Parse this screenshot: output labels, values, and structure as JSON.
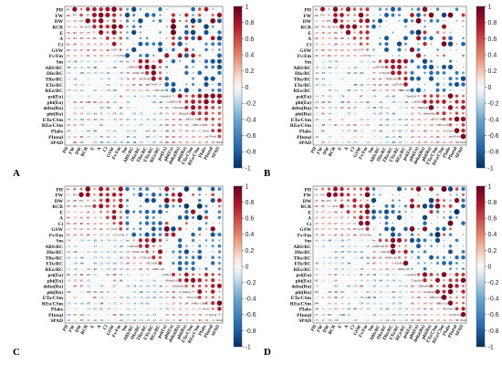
{
  "figure": {
    "panel_letters": [
      "A",
      "B",
      "C",
      "D"
    ]
  },
  "chart_data": [
    {
      "type": "heatmap",
      "panel": "A",
      "variables": [
        "PH",
        "FW",
        "DW",
        "RCR",
        "E",
        "A",
        "Ci",
        "GSW",
        "Fv/Fm",
        "Sm",
        "ABS/RC",
        "DIo/RC",
        "TRo/RC",
        "ETo/RC",
        "REo/RC",
        "psi(Eo)",
        "phi(Eo)",
        "delta(Ro)",
        "phi(Ro)",
        "ETo/CSm",
        "REo/CSm",
        "PIabs",
        "PItotal",
        "SPAD"
      ],
      "colorbar_ticks": [
        1,
        0.8,
        0.6,
        0.4,
        0.2,
        0,
        -0.2,
        -0.4,
        -0.6,
        -0.8,
        -1
      ],
      "colorbar_range": [
        -1,
        1
      ],
      "upper": "circles",
      "lower": "numbers"
    },
    {
      "type": "heatmap",
      "panel": "B",
      "variables": [
        "PH",
        "FW",
        "DW",
        "RCR",
        "E",
        "A",
        "Ci",
        "GSW",
        "Fv/Fm",
        "Sm",
        "ABS/RC",
        "DIo/RC",
        "TRo/RC",
        "ETo/RC",
        "REo/RC",
        "psi(Eo)",
        "phi(Eo)",
        "delta(Ro)",
        "phi(Ro)",
        "ETo/CSm",
        "REo/CSm",
        "PIabs",
        "PItotal",
        "SPAD"
      ],
      "colorbar_ticks": [
        1,
        0.8,
        0.6,
        0.4,
        0.2,
        0,
        -0.2,
        -0.4,
        -0.6,
        -0.8,
        -1
      ],
      "colorbar_range": [
        -1,
        1
      ],
      "upper": "circles",
      "lower": "numbers"
    },
    {
      "type": "heatmap",
      "panel": "C",
      "variables": [
        "PH",
        "FW",
        "DW",
        "RCR",
        "E",
        "A",
        "Ci",
        "GSW",
        "Fv/Fm",
        "Sm",
        "ABS/RC",
        "DIo/RC",
        "TRo/RC",
        "ETo/RC",
        "REo/RC",
        "psi(Eo)",
        "phi(Eo)",
        "delta(Ro)",
        "phi(Ro)",
        "ETo/CSm",
        "REo/CSm",
        "PIabs",
        "PItotal",
        "SPAD"
      ],
      "colorbar_ticks": [
        1,
        0.8,
        0.6,
        0.4,
        0.2,
        0,
        -0.2,
        -0.4,
        -0.6,
        -0.8,
        -1
      ],
      "colorbar_range": [
        -1,
        1
      ],
      "upper": "circles",
      "lower": "numbers"
    },
    {
      "type": "heatmap",
      "panel": "D",
      "variables": [
        "PH",
        "FW",
        "DW",
        "RCR",
        "E",
        "A",
        "Ci",
        "GSW",
        "Fv/Fm",
        "Sm",
        "ABS/RC",
        "DIo/RC",
        "TRo/RC",
        "ETo/RC",
        "REo/RC",
        "psi(Eo)",
        "phi(Eo)",
        "delta(Ro)",
        "phi(Ro)",
        "ETo/CSm",
        "REo/CSm",
        "PIabs",
        "PItotal",
        "SPAD"
      ],
      "colorbar_ticks": [
        1,
        0.8,
        0.6,
        0.4,
        0.2,
        0,
        -0.2,
        -0.4,
        -0.6,
        -0.8,
        -1
      ],
      "colorbar_range": [
        -1,
        1
      ],
      "upper": "circles",
      "lower": "numbers"
    }
  ]
}
